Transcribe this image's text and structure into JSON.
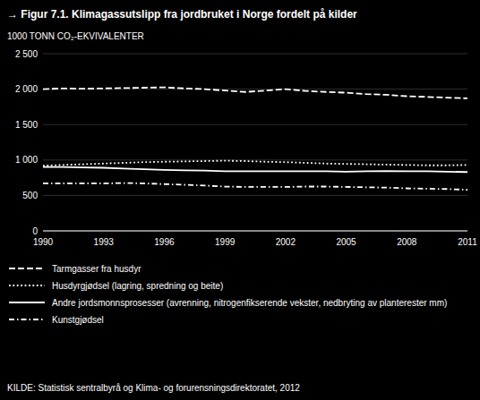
{
  "chart_data": {
    "type": "line",
    "title": "→ Figur 7.1. Klimagassutslipp fra jordbruket i Norge fordelt på kilder",
    "y_label": "1000 TONN CO₂-EKVIVALENTER",
    "annotations": [
      "KILDE: Statistisk sentralbyrå og Klima- og forurensningsdirektoratet, 2012"
    ],
    "x": [
      1990,
      1991,
      1992,
      1993,
      1994,
      1995,
      1996,
      1997,
      1998,
      1999,
      2000,
      2001,
      2002,
      2003,
      2004,
      2005,
      2006,
      2007,
      2008,
      2009,
      2010,
      2011
    ],
    "series": [
      {
        "name": "Tarmgasser fra husdyr",
        "color": "#ffffff",
        "line_style": "dashed",
        "values": [
          2000,
          2010,
          2005,
          2010,
          2015,
          2020,
          2025,
          2010,
          2000,
          1980,
          1960,
          1980,
          2000,
          1975,
          1960,
          1950,
          1930,
          1920,
          1900,
          1890,
          1880,
          1870
        ]
      },
      {
        "name": "Husdyrgjødsel (lagring, spredning og beite)",
        "color": "#ffffff",
        "line_style": "dotted",
        "values": [
          920,
          930,
          940,
          950,
          960,
          970,
          975,
          980,
          985,
          990,
          985,
          975,
          970,
          960,
          950,
          945,
          940,
          935,
          930,
          925,
          925,
          930
        ]
      },
      {
        "name": "Andre jordsmonnsprosesser (avrenning, nitrogenfikserende vekster, nedbryting av planterester mm)",
        "color": "#ffffff",
        "line_style": "solid",
        "values": [
          900,
          900,
          895,
          890,
          880,
          870,
          860,
          855,
          850,
          840,
          840,
          840,
          840,
          840,
          840,
          835,
          840,
          845,
          840,
          840,
          835,
          830
        ]
      },
      {
        "name": "Kunstgjødsel",
        "color": "#ffffff",
        "line_style": "dashdot",
        "values": [
          670,
          670,
          670,
          670,
          675,
          670,
          660,
          650,
          640,
          625,
          620,
          620,
          620,
          625,
          625,
          620,
          615,
          610,
          600,
          595,
          590,
          580
        ]
      }
    ],
    "xlim": [
      1990,
      2011
    ],
    "xticks": [
      1990,
      1993,
      1996,
      1999,
      2002,
      2005,
      2008,
      2011
    ],
    "ylim": [
      0,
      2500
    ],
    "yticks": [
      0,
      500,
      {
        "value": 1000,
        "label": "1 000"
      },
      {
        "value": 1500,
        "label": "1 500"
      },
      {
        "value": 2000,
        "label": "2 000"
      },
      {
        "value": 2500,
        "label": "2 500"
      }
    ],
    "grid": true,
    "legend": "bottom"
  }
}
